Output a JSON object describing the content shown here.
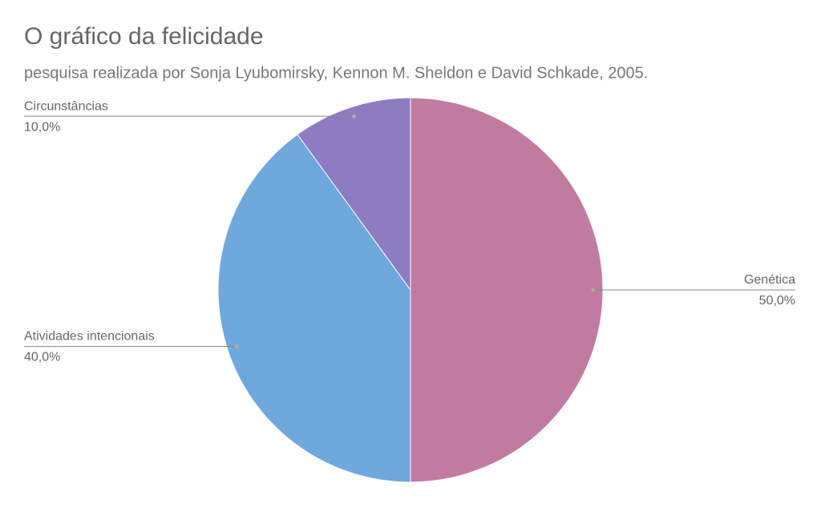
{
  "chart_data": {
    "type": "pie",
    "title": "O gráfico da felicidade",
    "subtitle": "pesquisa realizada por Sonja Lyubomirsky, Kennon M. Sheldon e David Schkade, 2005.",
    "categories": [
      "Genética",
      "Atividades intencionais",
      "Circunstâncias"
    ],
    "values": [
      50,
      40,
      10
    ],
    "value_labels": [
      "50,0%",
      "40,0%",
      "10,0%"
    ],
    "colors": [
      "#c27ba0",
      "#6fa8dc",
      "#8e7cc3"
    ]
  }
}
